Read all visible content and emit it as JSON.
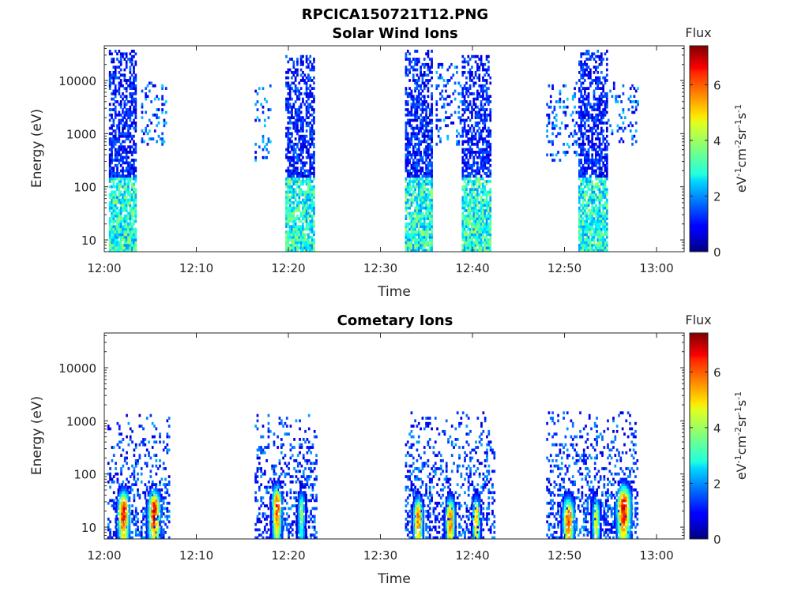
{
  "figure_title": "RPCICA150721T12.PNG",
  "chart_data": [
    {
      "type": "heatmap",
      "title": "Solar Wind Ions",
      "xlabel": "Time",
      "ylabel": "Energy (eV)",
      "x_ticks": [
        "12:00",
        "12:10",
        "12:20",
        "12:30",
        "12:40",
        "12:50",
        "13:00"
      ],
      "xlim": [
        "12:00",
        "13:03"
      ],
      "y_scale": "log",
      "y_ticks": [
        10,
        100,
        1000,
        10000
      ],
      "ylim": [
        6,
        45000
      ],
      "colorbar": {
        "label": "Flux",
        "unit_label": "eV-1cm-2sr-1s-1",
        "ticks": [
          0,
          2,
          4,
          6
        ],
        "range": [
          0,
          7.4
        ],
        "colormap": "jet"
      },
      "bursts": [
        {
          "start": "12:00:30",
          "end": "12:03:30",
          "e_min": 6,
          "e_max": 35000,
          "peak_flux": 1.8,
          "low_energy_flux": 3.5
        },
        {
          "start": "12:04:00",
          "end": "12:06:40",
          "e_min": 600,
          "e_max": 9000,
          "peak_flux": 2.5,
          "low_energy_flux": 2.5,
          "sparse": true
        },
        {
          "start": "12:16:20",
          "end": "12:18:00",
          "e_min": 300,
          "e_max": 9000,
          "peak_flux": 2.5,
          "low_energy_flux": 2.5,
          "sparse": true
        },
        {
          "start": "12:19:40",
          "end": "12:22:40",
          "e_min": 6,
          "e_max": 30000,
          "peak_flux": 1.8,
          "low_energy_flux": 3.5
        },
        {
          "start": "12:32:40",
          "end": "12:35:40",
          "e_min": 6,
          "e_max": 35000,
          "peak_flux": 1.8,
          "low_energy_flux": 3.5
        },
        {
          "start": "12:36:00",
          "end": "12:38:40",
          "e_min": 600,
          "e_max": 20000,
          "peak_flux": 2.5,
          "low_energy_flux": 2.5,
          "sparse": true
        },
        {
          "start": "12:38:50",
          "end": "12:42:00",
          "e_min": 6,
          "e_max": 30000,
          "peak_flux": 1.8,
          "low_energy_flux": 3.5
        },
        {
          "start": "12:48:00",
          "end": "12:51:30",
          "e_min": 300,
          "e_max": 9000,
          "peak_flux": 2.5,
          "low_energy_flux": 2.5,
          "sparse": true
        },
        {
          "start": "12:51:30",
          "end": "12:54:40",
          "e_min": 6,
          "e_max": 35000,
          "peak_flux": 1.8,
          "low_energy_flux": 3.5
        },
        {
          "start": "12:54:40",
          "end": "12:58:00",
          "e_min": 600,
          "e_max": 9000,
          "peak_flux": 2.5,
          "low_energy_flux": 2.5,
          "sparse": true
        }
      ]
    },
    {
      "type": "heatmap",
      "title": "Cometary Ions",
      "xlabel": "Time",
      "ylabel": "Energy (eV)",
      "x_ticks": [
        "12:00",
        "12:10",
        "12:20",
        "12:30",
        "12:40",
        "12:50",
        "13:00"
      ],
      "xlim": [
        "12:00",
        "13:03"
      ],
      "y_scale": "log",
      "y_ticks": [
        10,
        100,
        1000,
        10000
      ],
      "ylim": [
        6,
        45000
      ],
      "colorbar": {
        "label": "Flux",
        "unit_label": "eV-1cm-2sr-1s-1",
        "ticks": [
          0,
          2,
          4,
          6
        ],
        "range": [
          0,
          7.4
        ],
        "colormap": "jet"
      },
      "background_bursts": [
        {
          "start": "12:00:20",
          "end": "12:07:00",
          "e_min": 6,
          "e_max": 1300,
          "flux": 1.8
        },
        {
          "start": "12:16:20",
          "end": "12:23:00",
          "e_min": 6,
          "e_max": 1300,
          "flux": 1.8
        },
        {
          "start": "12:32:40",
          "end": "12:42:20",
          "e_min": 6,
          "e_max": 1400,
          "flux": 1.8
        },
        {
          "start": "12:48:00",
          "end": "12:58:00",
          "e_min": 6,
          "e_max": 1400,
          "flux": 1.8
        }
      ],
      "peaks": [
        {
          "time": "12:02:00",
          "width_min": 1.2,
          "energy": 20,
          "flux": 6.8
        },
        {
          "time": "12:05:20",
          "width_min": 1.3,
          "energy": 20,
          "flux": 7.0
        },
        {
          "time": "12:18:40",
          "width_min": 1.0,
          "energy": 25,
          "flux": 6.5
        },
        {
          "time": "12:21:20",
          "width_min": 0.8,
          "energy": 20,
          "flux": 4.0
        },
        {
          "time": "12:34:00",
          "width_min": 1.0,
          "energy": 15,
          "flux": 6.0
        },
        {
          "time": "12:37:30",
          "width_min": 1.0,
          "energy": 15,
          "flux": 6.0
        },
        {
          "time": "12:40:20",
          "width_min": 0.8,
          "energy": 15,
          "flux": 5.5
        },
        {
          "time": "12:50:20",
          "width_min": 1.2,
          "energy": 15,
          "flux": 6.2
        },
        {
          "time": "12:53:20",
          "width_min": 0.8,
          "energy": 15,
          "flux": 5.0
        },
        {
          "time": "12:56:20",
          "width_min": 1.5,
          "energy": 25,
          "flux": 7.0
        }
      ]
    }
  ]
}
